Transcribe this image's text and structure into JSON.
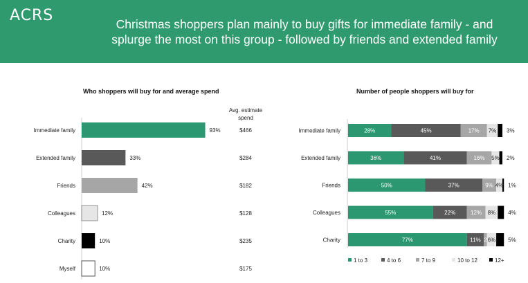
{
  "header": {
    "logo": "ACRS",
    "headline_line1": "Christmas shoppers plan mainly to buy gifts for immediate family - and",
    "headline_line2": "splurge the most on this group - followed by friends and extended family"
  },
  "colors": {
    "header_bg": "#2f9a6e",
    "green": "#2b9872",
    "dark_grey": "#595959",
    "mid_grey": "#a6a6a6",
    "light_grey": "#e6e6e6",
    "black": "#000000"
  },
  "chart_data": [
    {
      "type": "bar",
      "orientation": "horizontal",
      "title": "Who shoppers will buy for and average spend",
      "spend_header_line1": "Avg. estimate",
      "spend_header_line2": "spend",
      "categories": [
        "Immediate family",
        "Extended family",
        "Friends",
        "Colleagues",
        "Charity",
        "Myself"
      ],
      "values": [
        93,
        33,
        42,
        12,
        10,
        10
      ],
      "value_labels": [
        "93%",
        "33%",
        "42%",
        "12%",
        "10%",
        "10%"
      ],
      "bar_colors": [
        "#2b9872",
        "#595959",
        "#a6a6a6",
        "#e6e6e6",
        "#000000",
        "#ffffff"
      ],
      "avg_spend": [
        "$466",
        "$284",
        "$182",
        "$128",
        "$235",
        "$175"
      ],
      "xlim": [
        0,
        100
      ]
    },
    {
      "type": "bar",
      "orientation": "horizontal",
      "stacked": true,
      "title": "Number of people shoppers will buy for",
      "categories": [
        "Immediate family",
        "Extended family",
        "Friends",
        "Colleagues",
        "Charity"
      ],
      "series": [
        {
          "name": "1 to 3",
          "color": "#2b9872",
          "values": [
            28,
            36,
            50,
            55,
            77
          ],
          "labels": [
            "28%",
            "36%",
            "50%",
            "55%",
            "77%"
          ]
        },
        {
          "name": "4 to 6",
          "color": "#595959",
          "values": [
            45,
            41,
            37,
            22,
            11
          ],
          "labels": [
            "45%",
            "41%",
            "37%",
            "22%",
            "11%"
          ]
        },
        {
          "name": "7 to 9",
          "color": "#a6a6a6",
          "values": [
            17,
            16,
            9,
            12,
            2
          ],
          "labels": [
            "17%",
            "16%",
            "9%",
            "12%",
            "2"
          ]
        },
        {
          "name": "10 to 12",
          "color": "#e6e6e6",
          "values": [
            7,
            5,
            4,
            8,
            6
          ],
          "labels": [
            "7%",
            "5%",
            "4%",
            "8%",
            "6%"
          ]
        },
        {
          "name": "12+",
          "color": "#000000",
          "values": [
            3,
            2,
            1,
            4,
            5
          ],
          "labels": [
            "3%",
            "2%",
            "1%",
            "4%",
            "5%"
          ]
        }
      ],
      "xlim": [
        0,
        100
      ],
      "legend_position": "bottom"
    }
  ]
}
